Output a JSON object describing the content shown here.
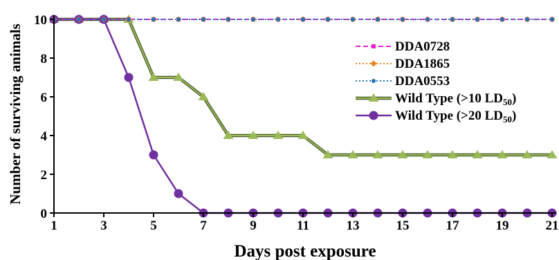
{
  "chart_data": {
    "type": "line",
    "xlabel": "Days post exposure",
    "ylabel": "Number of surviving animals",
    "xlim": [
      1,
      21
    ],
    "ylim": [
      0,
      10
    ],
    "x_ticks": [
      "1",
      "3",
      "5",
      "7",
      "9",
      "11",
      "13",
      "15",
      "17",
      "19",
      "21"
    ],
    "y_ticks": [
      "0",
      "2",
      "4",
      "6",
      "8",
      "10"
    ],
    "grid": false,
    "legend_position": "right",
    "x": [
      1,
      2,
      3,
      4,
      5,
      6,
      7,
      8,
      9,
      10,
      11,
      12,
      13,
      14,
      15,
      16,
      17,
      18,
      19,
      20,
      21
    ],
    "series": [
      {
        "name": "DDA0728",
        "sub": "",
        "suffix": "",
        "color": "#e81ecf",
        "marker": "square",
        "line_style": "dashed",
        "values": [
          10,
          10,
          10,
          10,
          10,
          10,
          10,
          10,
          10,
          10,
          10,
          10,
          10,
          10,
          10,
          10,
          10,
          10,
          10,
          10,
          10
        ]
      },
      {
        "name": "DDA1865",
        "sub": "",
        "suffix": "",
        "color": "#e8821e",
        "marker": "diamond",
        "line_style": "dotted",
        "values": [
          10,
          10,
          10,
          10,
          10,
          10,
          10,
          10,
          10,
          10,
          10,
          10,
          10,
          10,
          10,
          10,
          10,
          10,
          10,
          10,
          10
        ]
      },
      {
        "name": "DDA0553",
        "sub": "",
        "suffix": "",
        "color": "#1f73b7",
        "marker": "circle-small",
        "line_style": "dotted",
        "values": [
          10,
          10,
          10,
          10,
          10,
          10,
          10,
          10,
          10,
          10,
          10,
          10,
          10,
          10,
          10,
          10,
          10,
          10,
          10,
          10,
          10
        ]
      },
      {
        "name": "Wild Type (>10 LD",
        "sub": "50",
        "suffix": ")",
        "color": "#9bbb59",
        "marker": "triangle",
        "line_style": "solid",
        "values": [
          10,
          10,
          10,
          10,
          7,
          7,
          6,
          4,
          4,
          4,
          4,
          3,
          3,
          3,
          3,
          3,
          3,
          3,
          3,
          3,
          3
        ]
      },
      {
        "name": "Wild Type (>20 LD",
        "sub": "50",
        "suffix": ")",
        "color": "#7030a0",
        "marker": "circle",
        "line_style": "solid",
        "values": [
          10,
          10,
          10,
          7,
          3,
          1,
          0,
          0,
          0,
          0,
          0,
          0,
          0,
          0,
          0,
          0,
          0,
          0,
          0,
          0,
          0
        ]
      }
    ]
  }
}
